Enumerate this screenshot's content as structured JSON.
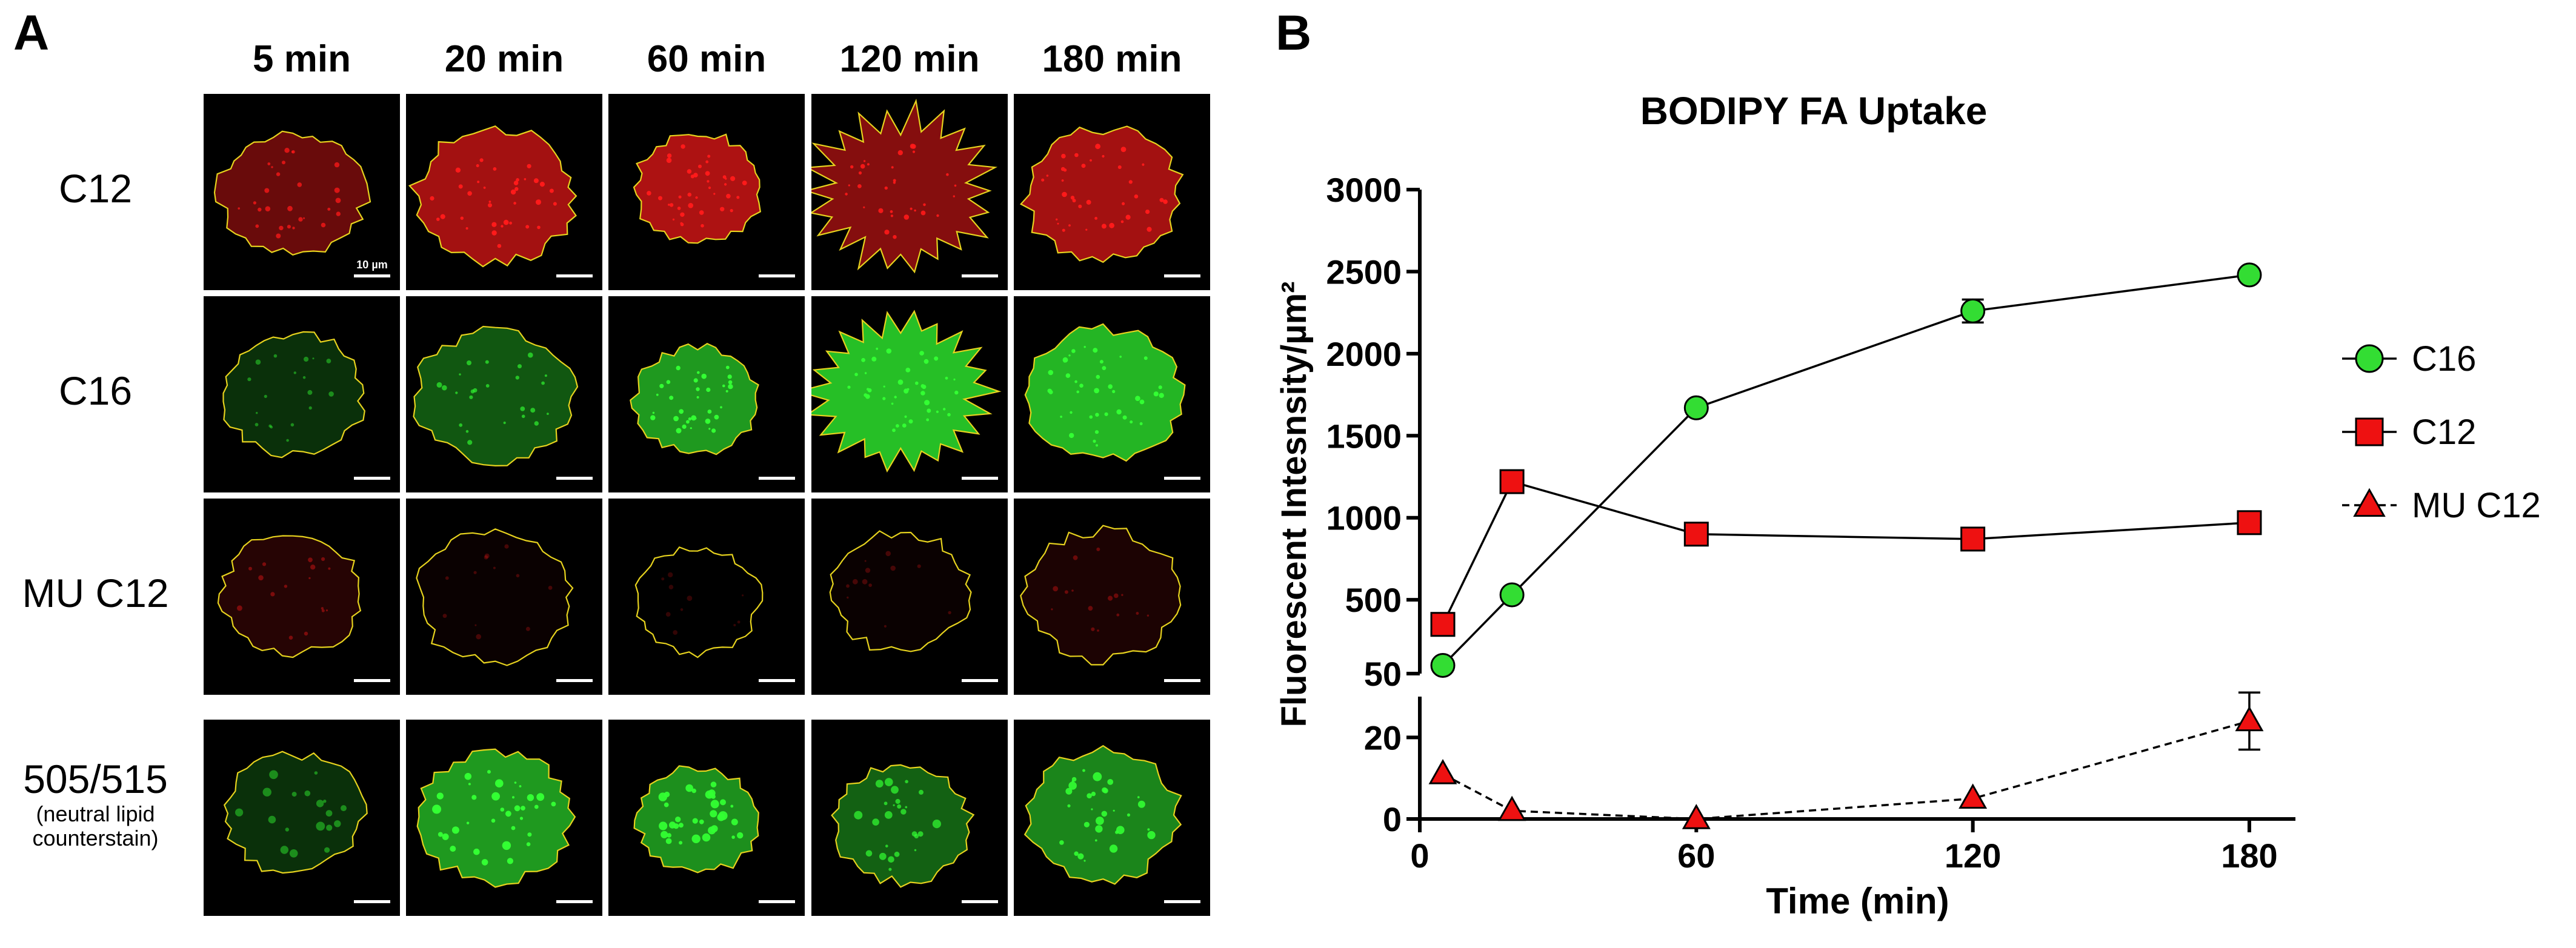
{
  "panel_a": {
    "letter": "A",
    "columns": [
      "5 min",
      "20 min",
      "60 min",
      "120 min",
      "180 min"
    ],
    "rows": [
      {
        "label": "C12",
        "sublabel": "",
        "color": "#ff1a1a"
      },
      {
        "label": "C16",
        "sublabel": "",
        "color": "#33ff33"
      },
      {
        "label": "MU C12",
        "sublabel": "",
        "color": "#ff1a1a"
      },
      {
        "label": "505/515",
        "sublabel": "(neutral lipid counterstain)",
        "color": "#33ff33"
      }
    ],
    "scale_bar_label": "10 µm",
    "outline_color": "#e6d21e",
    "brightness": [
      [
        0.55,
        0.85,
        0.9,
        0.7,
        0.85
      ],
      [
        0.25,
        0.45,
        0.8,
        1.0,
        0.95
      ],
      [
        0.2,
        0.05,
        0.0,
        0.05,
        0.15
      ],
      [
        0.25,
        0.8,
        0.75,
        0.5,
        0.7
      ]
    ]
  },
  "chart_data": {
    "type": "line",
    "panel_letter": "B",
    "title": "BODIPY FA Uptake",
    "xlabel": "Time (min)",
    "ylabel": "Fluorescent Intesnsity/µm²",
    "x": [
      5,
      20,
      60,
      120,
      180
    ],
    "xlim": [
      0,
      190
    ],
    "xticks": [
      "0",
      "60",
      "120",
      "180"
    ],
    "y_upper_range": [
      50,
      3000
    ],
    "y_upper_ticks": [
      "50",
      "500",
      "1000",
      "1500",
      "2000",
      "2500",
      "3000"
    ],
    "y_lower_range": [
      0,
      30
    ],
    "y_lower_ticks": [
      "0",
      "20"
    ],
    "series": [
      {
        "name": "C16",
        "marker": "circle",
        "color": "#33dd33",
        "line": "solid",
        "values": [
          100,
          530,
          1670,
          2260,
          2480
        ],
        "errors": [
          0,
          0,
          0,
          70,
          0
        ]
      },
      {
        "name": "C12",
        "marker": "square",
        "color": "#ee1111",
        "line": "solid",
        "values": [
          350,
          1220,
          900,
          870,
          970
        ],
        "errors": [
          0,
          0,
          0,
          0,
          0
        ]
      },
      {
        "name": "MU C12",
        "marker": "triangle",
        "color": "#ee1111",
        "line": "dashed",
        "values": [
          11,
          2,
          0,
          5,
          24
        ],
        "errors": [
          0,
          0,
          0,
          0,
          7
        ]
      }
    ],
    "legend_position": "right"
  }
}
